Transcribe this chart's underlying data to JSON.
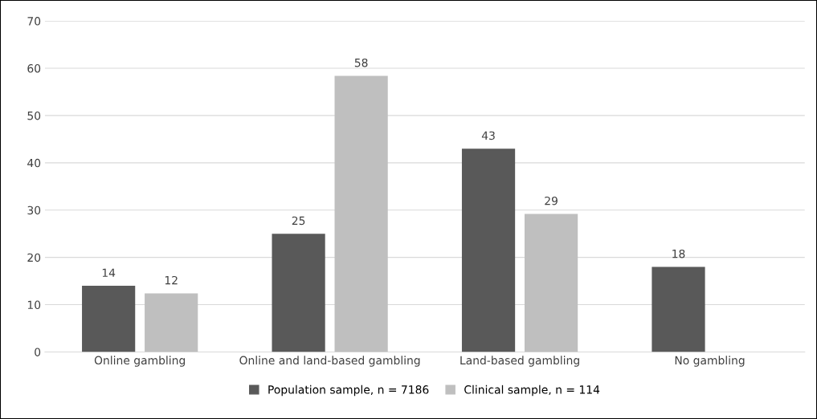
{
  "chart_data": {
    "type": "bar",
    "categories": [
      "Online gambling",
      "Online and land-based gambling",
      "Land-based gambling",
      "No gambling"
    ],
    "series": [
      {
        "name": "Population sample, n = 7186",
        "color": "#595959",
        "values": [
          14,
          25,
          43,
          18
        ],
        "value_labels": [
          "14",
          "25",
          "43",
          "18"
        ]
      },
      {
        "name": "Clinical sample, n = 114",
        "color": "#bfbfbf",
        "values": [
          12.4,
          58.4,
          29.2,
          null
        ],
        "value_labels": [
          "12",
          "58",
          "29",
          null
        ]
      }
    ],
    "ylim": [
      0,
      70
    ],
    "yticks": [
      0,
      10,
      20,
      30,
      40,
      50,
      60,
      70
    ],
    "grid": "y",
    "legend": "bottom"
  }
}
